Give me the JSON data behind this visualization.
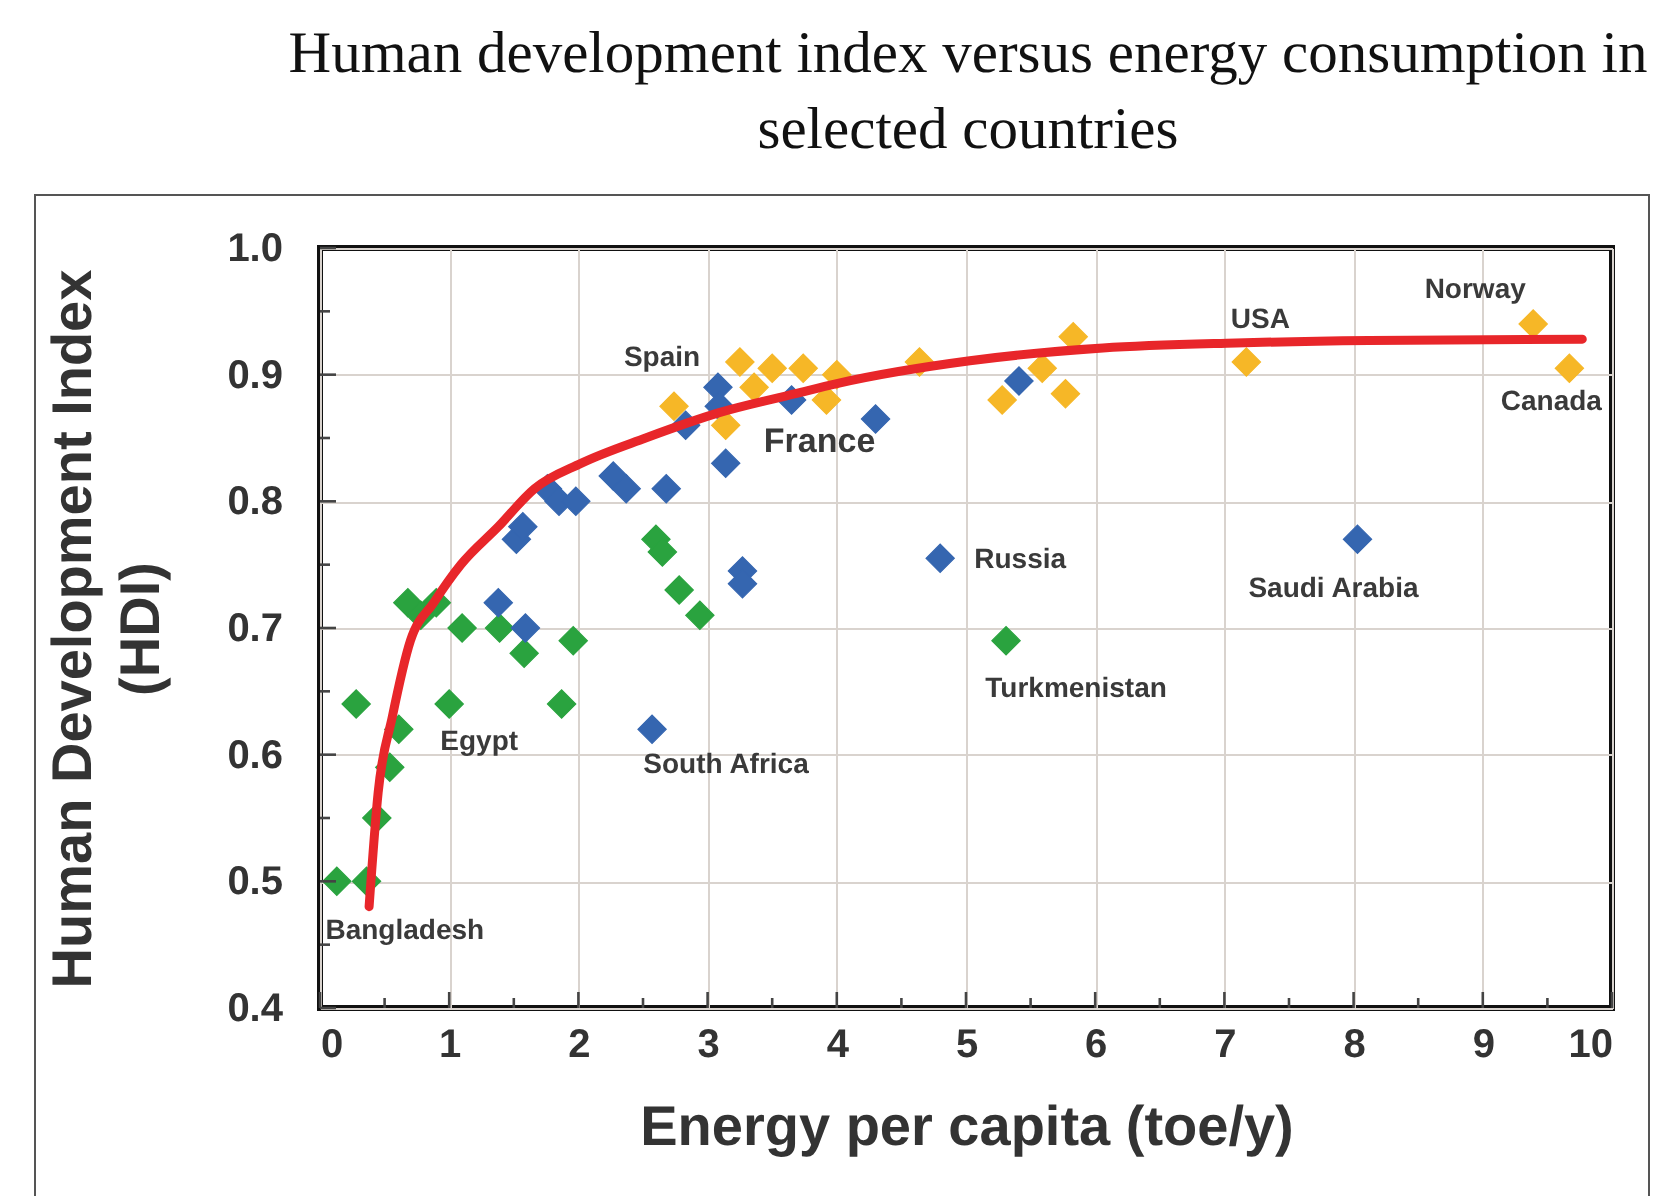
{
  "chart_data": {
    "type": "scatter",
    "title": "Human development index versus energy consumption in selected countries",
    "xlabel": "Energy per capita (toe/y)",
    "ylabel": "Human Development Index (HDI)",
    "xlim": [
      0,
      10
    ],
    "ylim": [
      0.4,
      1.0
    ],
    "xticks": [
      0,
      {
        "value": 0.5,
        "label": null
      },
      1,
      {
        "value": 1.5,
        "label": null
      },
      2,
      {
        "value": 2.5,
        "label": null
      },
      3,
      {
        "value": 3.5,
        "label": null
      },
      4,
      {
        "value": 4.5,
        "label": null
      },
      5,
      {
        "value": 5.5,
        "label": null
      },
      6,
      {
        "value": 6.5,
        "label": null
      },
      7,
      {
        "value": 7.5,
        "label": null
      },
      8,
      {
        "value": 8.5,
        "label": null
      },
      9,
      {
        "value": 9.5,
        "label": null
      },
      10
    ],
    "yticks": [
      0.4,
      {
        "value": 0.45,
        "label": null
      },
      0.5,
      {
        "value": 0.55,
        "label": null
      },
      0.6,
      {
        "value": 0.65,
        "label": null
      },
      0.7,
      {
        "value": 0.75,
        "label": null
      },
      0.8,
      {
        "value": 0.85,
        "label": null
      },
      0.9,
      {
        "value": 0.95,
        "label": null
      },
      {
        "value": 1.0,
        "label": "1.0"
      }
    ],
    "grid": true,
    "marker": "diamond",
    "series": [
      {
        "color": "#2aa33f",
        "x": [
          0.13,
          0.36,
          0.28,
          0.44,
          0.54,
          0.61,
          0.68,
          0.78,
          0.9,
          1.0,
          1.1,
          1.39,
          1.58,
          1.87,
          1.96,
          2.6,
          2.65,
          2.78,
          2.94,
          5.31
        ],
        "values": [
          0.5,
          0.5,
          0.64,
          0.55,
          0.59,
          0.62,
          0.72,
          0.71,
          0.72,
          0.64,
          0.7,
          0.7,
          0.68,
          0.64,
          0.69,
          0.77,
          0.76,
          0.73,
          0.71,
          0.69
        ]
      },
      {
        "color": "#3566b0",
        "x": [
          1.38,
          1.59,
          1.52,
          1.57,
          1.76,
          1.85,
          1.98,
          2.27,
          2.37,
          2.68,
          2.57,
          3.27,
          3.27,
          2.83,
          3.08,
          3.09,
          3.14,
          3.65,
          4.3,
          4.8,
          5.41,
          8.03
        ],
        "values": [
          0.72,
          0.7,
          0.77,
          0.78,
          0.81,
          0.8,
          0.8,
          0.82,
          0.81,
          0.81,
          0.62,
          0.745,
          0.735,
          0.86,
          0.89,
          0.875,
          0.83,
          0.88,
          0.865,
          0.755,
          0.895,
          0.77
        ]
      },
      {
        "color": "#f6b727",
        "x": [
          2.74,
          3.14,
          3.25,
          3.36,
          3.5,
          3.74,
          3.92,
          4.0,
          4.64,
          5.28,
          5.59,
          5.77,
          5.83,
          7.17,
          9.39,
          9.67
        ],
        "values": [
          0.875,
          0.86,
          0.91,
          0.89,
          0.905,
          0.905,
          0.88,
          0.9,
          0.91,
          0.88,
          0.905,
          0.885,
          0.93,
          0.91,
          0.94,
          0.905
        ]
      },
      {
        "type": "line",
        "marker": "none",
        "color": "#e8262a",
        "x": [
          0.38,
          0.45,
          0.56,
          0.7,
          0.88,
          1.09,
          1.38,
          1.66,
          2.02,
          2.52,
          3.09,
          3.68,
          4.0,
          5.03,
          6.06,
          7.09,
          8.12,
          9.77
        ],
        "values": [
          0.48,
          0.57,
          0.63,
          0.69,
          0.72,
          0.75,
          0.78,
          0.81,
          0.83,
          0.85,
          0.87,
          0.885,
          0.893,
          0.911,
          0.921,
          0.925,
          0.927,
          0.928
        ]
      }
    ],
    "annotations": [
      {
        "text": "Spain",
        "x": 2.74,
        "y": 0.875
      },
      {
        "text": "France",
        "x": 3.65,
        "y": 0.88
      },
      {
        "text": "USA",
        "x": 7.17,
        "y": 0.91
      },
      {
        "text": "Norway",
        "x": 9.39,
        "y": 0.94
      },
      {
        "text": "Canada",
        "x": 9.67,
        "y": 0.905
      },
      {
        "text": "Russia",
        "x": 4.8,
        "y": 0.755
      },
      {
        "text": "Saudi Arabia",
        "x": 8.03,
        "y": 0.77
      },
      {
        "text": "Turkmenistan",
        "x": 5.31,
        "y": 0.69
      },
      {
        "text": "South Africa",
        "x": 2.57,
        "y": 0.62
      },
      {
        "text": "Egypt",
        "x": 1.0,
        "y": 0.64
      },
      {
        "text": "Bangladesh",
        "x": 0.13,
        "y": 0.5
      }
    ]
  }
}
